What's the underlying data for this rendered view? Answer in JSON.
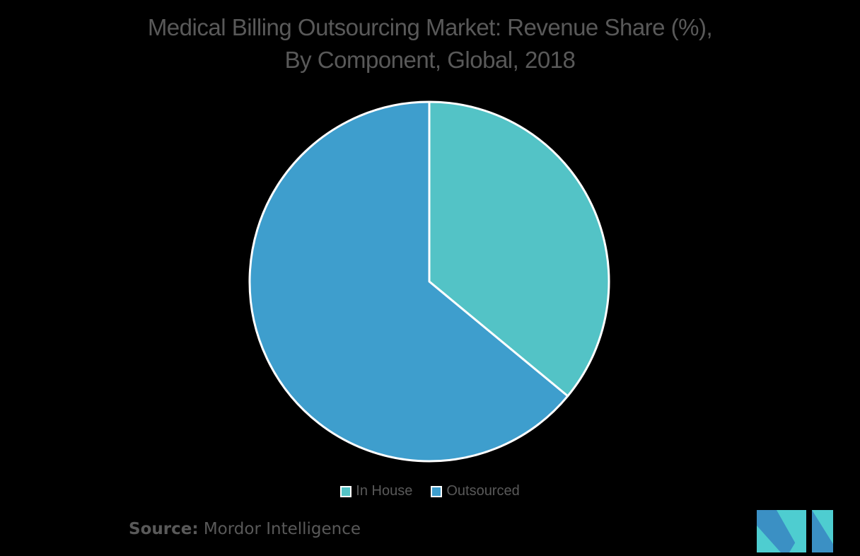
{
  "title": {
    "line1": "Medical Billing Outsourcing Market: Revenue Share (%),",
    "line2": "By Component, Global, 2018"
  },
  "legend": [
    {
      "label": "In House",
      "color": "#53c3c6"
    },
    {
      "label": "Outsourced",
      "color": "#3e9ecd"
    }
  ],
  "source": {
    "label": "Source:",
    "value": "Mordor Intelligence"
  },
  "logo": {
    "name": "Mordor Intelligence logo",
    "colors": [
      "#3b90c4",
      "#4ecdd0"
    ]
  },
  "chart_data": {
    "type": "pie",
    "title": "Medical Billing Outsourcing Market: Revenue Share (%), By Component, Global, 2018",
    "categories": [
      "In House",
      "Outsourced"
    ],
    "values": [
      36,
      64
    ],
    "colors": [
      "#53c3c6",
      "#3e9ecd"
    ],
    "start_angle": "12 o'clock, clockwise",
    "data_labels": false,
    "legend_position": "bottom"
  }
}
